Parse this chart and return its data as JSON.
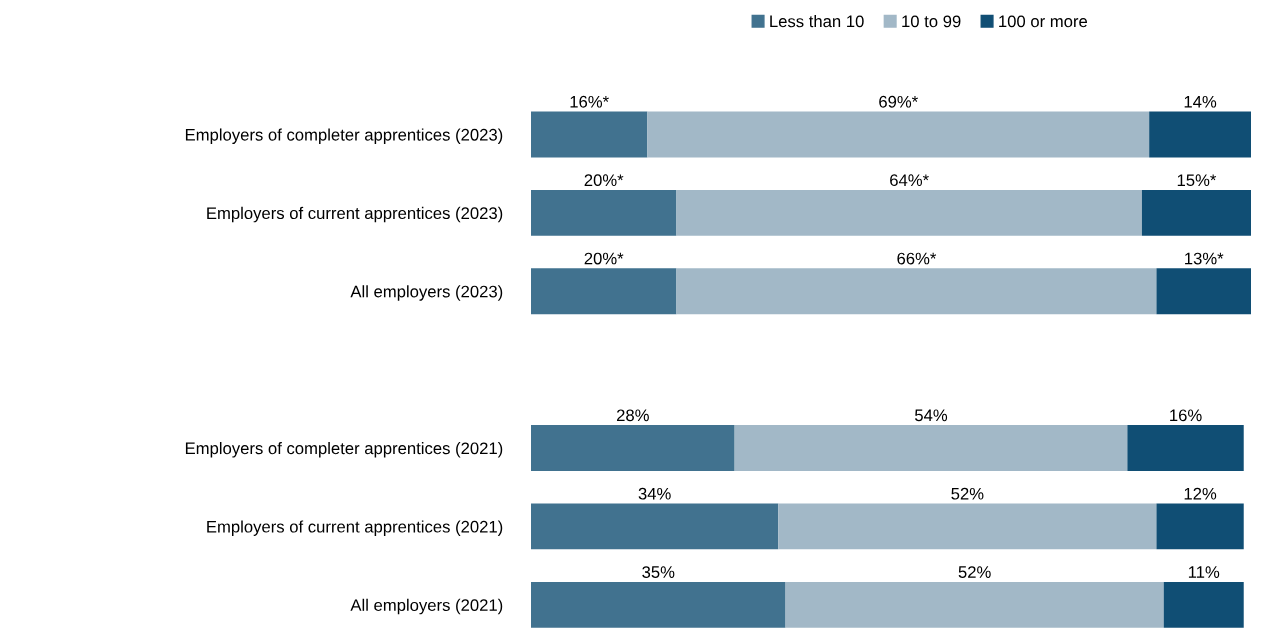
{
  "chart_data": {
    "type": "bar",
    "orientation": "horizontal",
    "stacked": true,
    "legend": "top",
    "categories": [
      "Employers of completer apprentices (2023)",
      "Employers of current apprentices (2023)",
      "All employers (2023)",
      null,
      "Employers of completer apprentices (2021)",
      "Employers of current apprentices (2021)",
      "All employers (2021)"
    ],
    "series": [
      {
        "name": "Less than 10",
        "color": "#41728f",
        "values": [
          16,
          20,
          20,
          null,
          28,
          34,
          35
        ],
        "value_labels": [
          "16%*",
          "20%*",
          "20%*",
          null,
          "28%",
          "34%",
          "35%"
        ]
      },
      {
        "name": "10 to 99",
        "color": "#a2b8c7",
        "values": [
          69,
          64,
          66,
          null,
          54,
          52,
          52
        ],
        "value_labels": [
          "69%*",
          "64%*",
          "66%*",
          null,
          "54%",
          "52%",
          "52%"
        ]
      },
      {
        "name": "100 or more",
        "color": "#104e74",
        "values": [
          14,
          15,
          13,
          null,
          16,
          12,
          11
        ],
        "value_labels": [
          "14%",
          "15%*",
          "13%*",
          null,
          "16%",
          "12%",
          "11%"
        ]
      }
    ]
  }
}
